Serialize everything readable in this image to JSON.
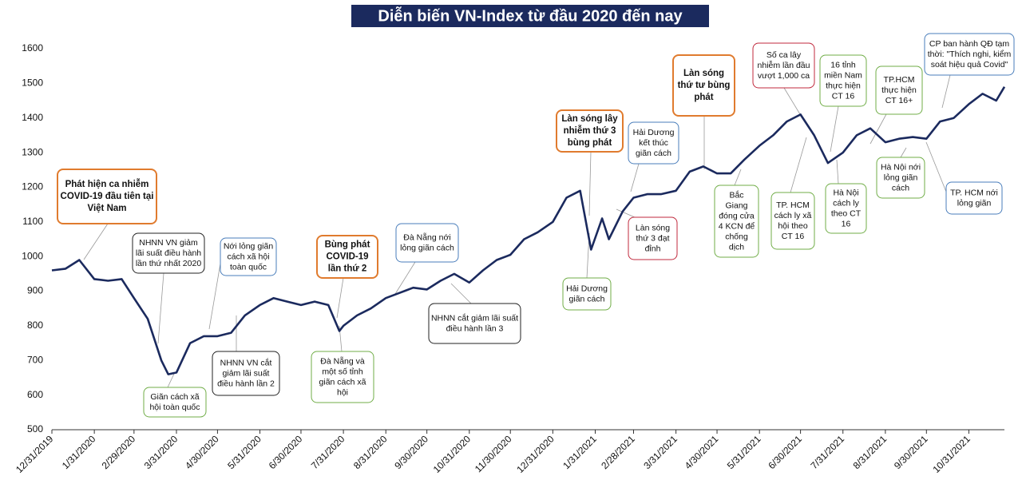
{
  "chart_data": {
    "type": "line",
    "title": "Diễn biến VN-Index từ đầu 2020 đến nay",
    "color": "#1b2a5e",
    "x": [
      "12/31/2019",
      "1/10/2020",
      "1/20/2020",
      "1/31/2020",
      "2/10/2020",
      "2/20/2020",
      "2/29/2020",
      "3/10/2020",
      "3/20/2020",
      "3/25/2020",
      "3/31/2020",
      "4/10/2020",
      "4/20/2020",
      "4/30/2020",
      "5/10/2020",
      "5/20/2020",
      "5/31/2020",
      "6/10/2020",
      "6/20/2020",
      "6/30/2020",
      "7/10/2020",
      "7/20/2020",
      "7/28/2020",
      "7/31/2020",
      "8/10/2020",
      "8/20/2020",
      "8/31/2020",
      "9/10/2020",
      "9/20/2020",
      "9/30/2020",
      "10/10/2020",
      "10/20/2020",
      "10/31/2020",
      "11/10/2020",
      "11/20/2020",
      "11/30/2020",
      "12/10/2020",
      "12/20/2020",
      "12/31/2020",
      "1/10/2021",
      "1/20/2021",
      "1/28/2021",
      "2/5/2021",
      "2/10/2021",
      "2/20/2021",
      "2/28/2021",
      "3/10/2021",
      "3/20/2021",
      "3/31/2021",
      "4/10/2021",
      "4/20/2021",
      "4/30/2021",
      "5/10/2021",
      "5/20/2021",
      "5/31/2021",
      "6/10/2021",
      "6/20/2021",
      "6/30/2021",
      "7/10/2021",
      "7/20/2021",
      "7/31/2021",
      "8/10/2021",
      "8/20/2021",
      "8/31/2021",
      "9/10/2021",
      "9/20/2021",
      "9/30/2021",
      "10/10/2021",
      "10/20/2021",
      "10/31/2021",
      "11/10/2021",
      "11/20/2021",
      "11/26/2021"
    ],
    "values": [
      960,
      965,
      990,
      935,
      930,
      935,
      880,
      820,
      700,
      660,
      665,
      750,
      770,
      770,
      780,
      830,
      860,
      880,
      870,
      860,
      870,
      860,
      785,
      800,
      830,
      850,
      880,
      895,
      910,
      905,
      930,
      950,
      925,
      960,
      990,
      1005,
      1050,
      1070,
      1100,
      1170,
      1190,
      1020,
      1110,
      1050,
      1130,
      1170,
      1180,
      1180,
      1190,
      1245,
      1260,
      1240,
      1240,
      1280,
      1320,
      1350,
      1390,
      1410,
      1350,
      1270,
      1300,
      1350,
      1370,
      1330,
      1340,
      1345,
      1340,
      1390,
      1400,
      1440,
      1470,
      1450,
      1490
    ],
    "xlim": [
      "12/31/2019",
      "11/26/2021"
    ],
    "xticks": [
      "12/31/2019",
      "1/31/2020",
      "2/29/2020",
      "3/31/2020",
      "4/30/2020",
      "5/31/2020",
      "6/30/2020",
      "7/31/2020",
      "8/31/2020",
      "9/30/2020",
      "10/31/2020",
      "11/30/2020",
      "12/31/2020",
      "1/31/2021",
      "2/28/2021",
      "3/31/2021",
      "4/30/2021",
      "5/31/2021",
      "6/30/2021",
      "7/31/2021",
      "8/31/2021",
      "9/30/2021",
      "10/31/2021"
    ],
    "ylim": [
      500,
      1600
    ],
    "yticks": [
      500,
      600,
      700,
      800,
      900,
      1000,
      1100,
      1200,
      1300,
      1400,
      1500,
      1600
    ],
    "annotations": [
      {
        "lines": [
          "Phát hiện ca nhiễm",
          "COVID-19 đầu tiên tại",
          "Việt Nam"
        ],
        "color": "#e07b2e",
        "bold": true
      },
      {
        "lines": [
          "NHNN VN giảm",
          "lãi suất điều hành",
          "lần thứ nhất 2020"
        ],
        "color": "#222222",
        "bold": false
      },
      {
        "lines": [
          "Giãn cách xã",
          "hội toàn quốc"
        ],
        "color": "#70ad47",
        "bold": false
      },
      {
        "lines": [
          "Nới lỏng giãn",
          "cách xã hội",
          "toàn quốc"
        ],
        "color": "#4a7ebb",
        "bold": false
      },
      {
        "lines": [
          "NHNN VN cắt",
          "giảm lãi suất",
          "điều hành lần 2"
        ],
        "color": "#222222",
        "bold": false
      },
      {
        "lines": [
          "Bùng phát",
          "COVID-19",
          "lần thứ 2"
        ],
        "color": "#e07b2e",
        "bold": true
      },
      {
        "lines": [
          "Đà Nẵng và",
          "một số tỉnh",
          "giãn cách xã",
          "hội"
        ],
        "color": "#70ad47",
        "bold": false
      },
      {
        "lines": [
          "Đà Nẵng nới",
          "lỏng giãn cách"
        ],
        "color": "#4a7ebb",
        "bold": false
      },
      {
        "lines": [
          "NHNN cắt giảm lãi suất",
          "điều hành lần 3"
        ],
        "color": "#222222",
        "bold": false
      },
      {
        "lines": [
          "Làn sóng lây",
          "nhiễm thứ 3",
          "bùng phát"
        ],
        "color": "#e07b2e",
        "bold": true
      },
      {
        "lines": [
          "Hải Dương",
          "giãn cách"
        ],
        "color": "#70ad47",
        "bold": false
      },
      {
        "lines": [
          "Hải Dương",
          "kết thúc",
          "giãn cách"
        ],
        "color": "#4a7ebb",
        "bold": false
      },
      {
        "lines": [
          "Làn sóng",
          "thứ 3 đạt",
          "đỉnh"
        ],
        "color": "#c0283c",
        "bold": false
      },
      {
        "lines": [
          "Làn sóng",
          "thứ tư bùng",
          "phát"
        ],
        "color": "#e07b2e",
        "bold": true
      },
      {
        "lines": [
          "Bắc",
          "Giang",
          "đóng cửa",
          "4 KCN để",
          "chống",
          "dịch"
        ],
        "color": "#70ad47",
        "bold": false
      },
      {
        "lines": [
          "Số ca lây",
          "nhiễm lần đầu",
          "vượt 1,000 ca"
        ],
        "color": "#c0283c",
        "bold": false
      },
      {
        "lines": [
          "TP. HCM",
          "cách ly xã",
          "hội theo",
          "CT 16"
        ],
        "color": "#70ad47",
        "bold": false
      },
      {
        "lines": [
          "16 tỉnh",
          "miền Nam",
          "thực hiện",
          "CT 16"
        ],
        "color": "#70ad47",
        "bold": false
      },
      {
        "lines": [
          "Hà Nội",
          "cách ly",
          "theo CT",
          "16"
        ],
        "color": "#70ad47",
        "bold": false
      },
      {
        "lines": [
          "TP.HCM",
          "thực hiện",
          "CT 16+"
        ],
        "color": "#70ad47",
        "bold": false
      },
      {
        "lines": [
          "Hà Nội nới",
          "lỏng giãn",
          "cách"
        ],
        "color": "#70ad47",
        "bold": false
      },
      {
        "lines": [
          "CP ban hành QĐ tạm",
          "thời: \"Thích nghi, kiểm",
          "soát hiệu quả Covid\""
        ],
        "color": "#4a7ebb",
        "bold": false
      },
      {
        "lines": [
          "TP. HCM nới",
          "lỏng giãn"
        ],
        "color": "#4a7ebb",
        "bold": false
      }
    ]
  }
}
